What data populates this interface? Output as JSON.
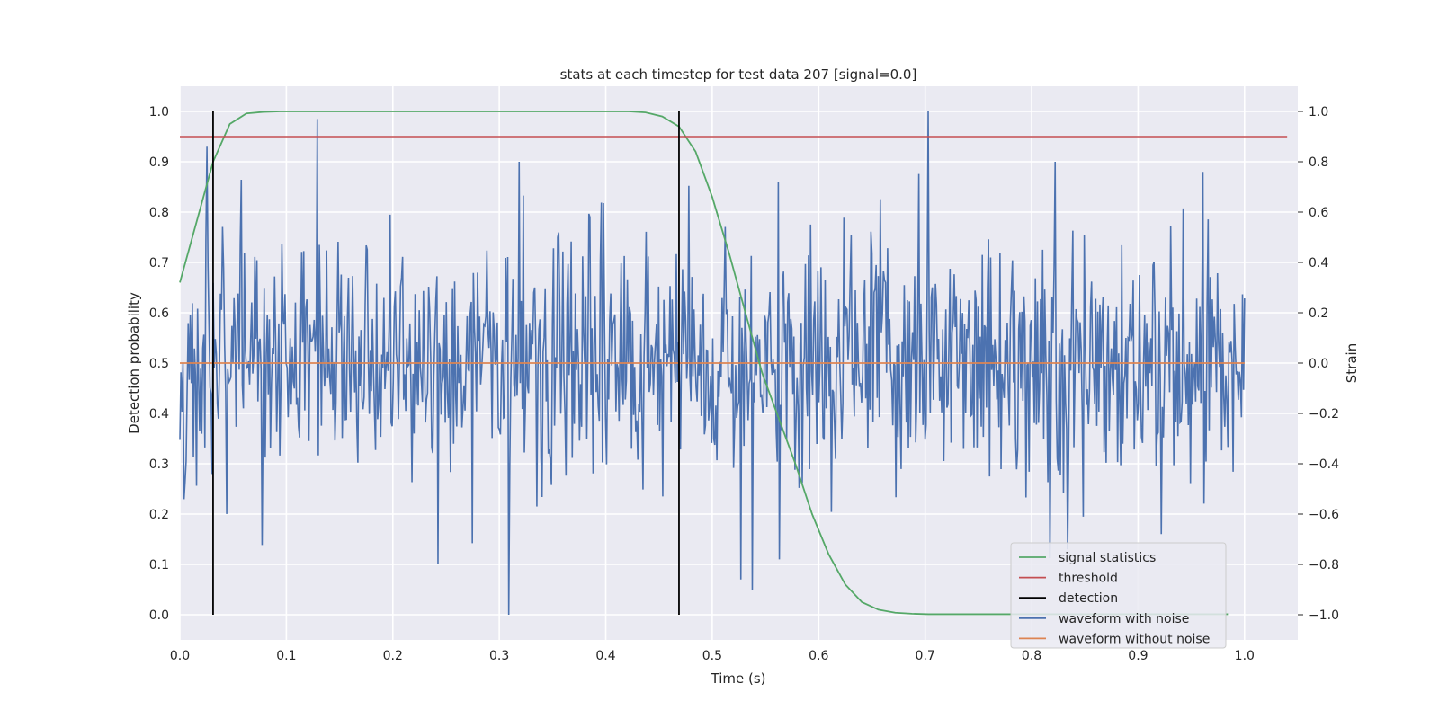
{
  "chart_data": {
    "type": "line",
    "title": "stats at each timestep for test data 207 [signal=0.0]",
    "xlabel": "Time (s)",
    "ylabel": "Detection probability",
    "y2label": "Strain",
    "xlim": [
      0.0,
      1.05
    ],
    "ylim": [
      -0.05,
      1.05
    ],
    "y2lim": [
      -1.1,
      1.1
    ],
    "grid": true,
    "legend_position": "lower-right",
    "x_ticks": [
      "0.0",
      "0.1",
      "0.2",
      "0.3",
      "0.4",
      "0.5",
      "0.6",
      "0.7",
      "0.8",
      "0.9",
      "1.0"
    ],
    "y_ticks": [
      "0.0",
      "0.1",
      "0.2",
      "0.3",
      "0.4",
      "0.5",
      "0.6",
      "0.7",
      "0.8",
      "0.9",
      "1.0"
    ],
    "y2_ticks": [
      "−1.0",
      "−0.8",
      "−0.6",
      "−0.4",
      "−0.2",
      "0.0",
      "0.2",
      "0.4",
      "0.6",
      "0.8",
      "1.0"
    ],
    "series": [
      {
        "name": "signal statistics",
        "axis": "left",
        "color": "#55a868",
        "x": [
          0.0,
          0.0156,
          0.0312,
          0.0469,
          0.0625,
          0.0781,
          0.0938,
          0.1094,
          0.125,
          0.2,
          0.3,
          0.4,
          0.4219,
          0.4375,
          0.4531,
          0.4688,
          0.4844,
          0.5,
          0.5156,
          0.5312,
          0.5469,
          0.5625,
          0.5781,
          0.5938,
          0.6094,
          0.625,
          0.6406,
          0.6562,
          0.6719,
          0.6875,
          0.7031,
          0.75,
          0.8,
          0.85,
          0.9,
          0.95,
          0.9844
        ],
        "y": [
          0.66,
          0.78,
          0.9,
          0.975,
          0.996,
          0.999,
          1.0,
          1.0,
          1.0,
          1.0,
          1.0,
          1.0,
          1.0,
          0.998,
          0.99,
          0.97,
          0.92,
          0.83,
          0.72,
          0.6,
          0.48,
          0.39,
          0.3,
          0.2,
          0.12,
          0.06,
          0.025,
          0.01,
          0.004,
          0.002,
          0.001,
          0.001,
          0.001,
          0.001,
          0.001,
          0.001,
          0.001
        ]
      },
      {
        "name": "threshold",
        "axis": "left",
        "color": "#c44e52",
        "x": [
          0.0,
          1.04
        ],
        "y": [
          0.95,
          0.95
        ]
      },
      {
        "name": "detection",
        "axis": "left",
        "color": "#000000",
        "type": "vlines",
        "x": [
          0.0312,
          0.4688
        ],
        "y_range": [
          0.0,
          1.0
        ]
      },
      {
        "name": "waveform with noise",
        "axis": "right",
        "color": "#4c72b0",
        "x_range": [
          0.0,
          1.0
        ],
        "n_points": 1024,
        "noise_amplitude": 0.5,
        "highlight_points": [
          {
            "x": 0.1289,
            "y": 0.97
          },
          {
            "x": 0.3086,
            "y": -1.0
          },
          {
            "x": 0.7031,
            "y": 1.0
          },
          {
            "x": 0.0254,
            "y": 0.86
          },
          {
            "x": 0.3184,
            "y": 0.8
          },
          {
            "x": 0.5625,
            "y": 0.72
          },
          {
            "x": 0.8223,
            "y": 0.8
          },
          {
            "x": 0.9609,
            "y": 0.76
          },
          {
            "x": 0.5381,
            "y": -0.9
          },
          {
            "x": 0.5273,
            "y": -0.86
          },
          {
            "x": 0.2422,
            "y": -0.8
          },
          {
            "x": 0.834,
            "y": -0.74
          }
        ]
      },
      {
        "name": "waveform without noise",
        "axis": "right",
        "color": "#dd8452",
        "x": [
          0.0,
          1.0
        ],
        "y": [
          0.0,
          0.0
        ]
      }
    ]
  }
}
